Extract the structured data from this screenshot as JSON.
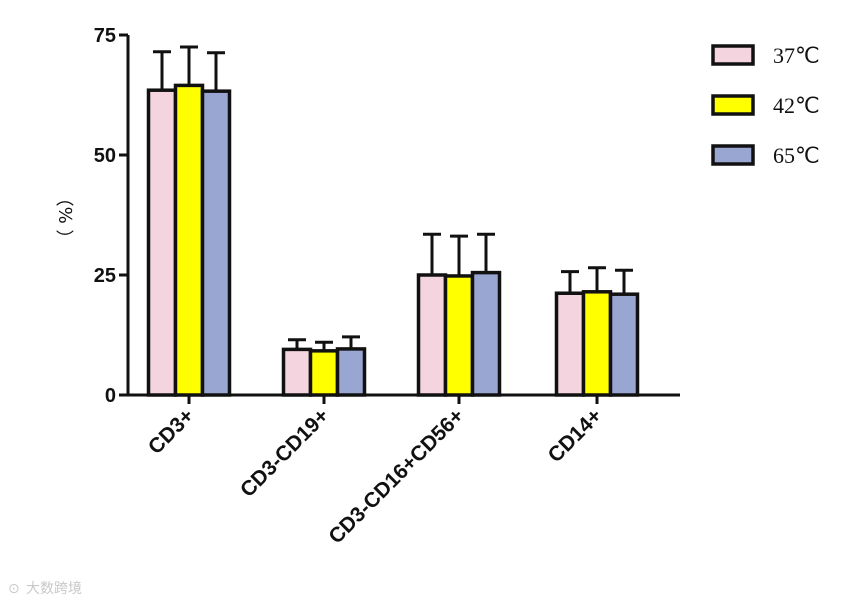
{
  "chart_data": {
    "type": "bar",
    "title": "",
    "xlabel": "",
    "ylabel": "（ %）",
    "ylim": [
      0,
      75
    ],
    "yticks": [
      0,
      25,
      50,
      75
    ],
    "categories": [
      "CD3+",
      "CD3-CD19+",
      "CD3-CD16+CD56+",
      "CD14+"
    ],
    "series": [
      {
        "name": "37℃",
        "color": "#f4d4de",
        "values": [
          63.5,
          9.5,
          25,
          21.2
        ],
        "errors": [
          8.0,
          2.0,
          8.5,
          4.5
        ]
      },
      {
        "name": "42℃",
        "color": "#ffff00",
        "values": [
          64.5,
          9.2,
          24.8,
          21.5
        ],
        "errors": [
          8.0,
          1.8,
          8.3,
          5.0
        ]
      },
      {
        "name": "65℃",
        "color": "#9aa6d2",
        "values": [
          63.3,
          9.6,
          25.5,
          21.0
        ],
        "errors": [
          8.0,
          2.5,
          8.0,
          5.0
        ]
      }
    ],
    "grid": false,
    "legend_position": "top-right",
    "error_bars": "upper"
  },
  "watermark": "大数跨境"
}
